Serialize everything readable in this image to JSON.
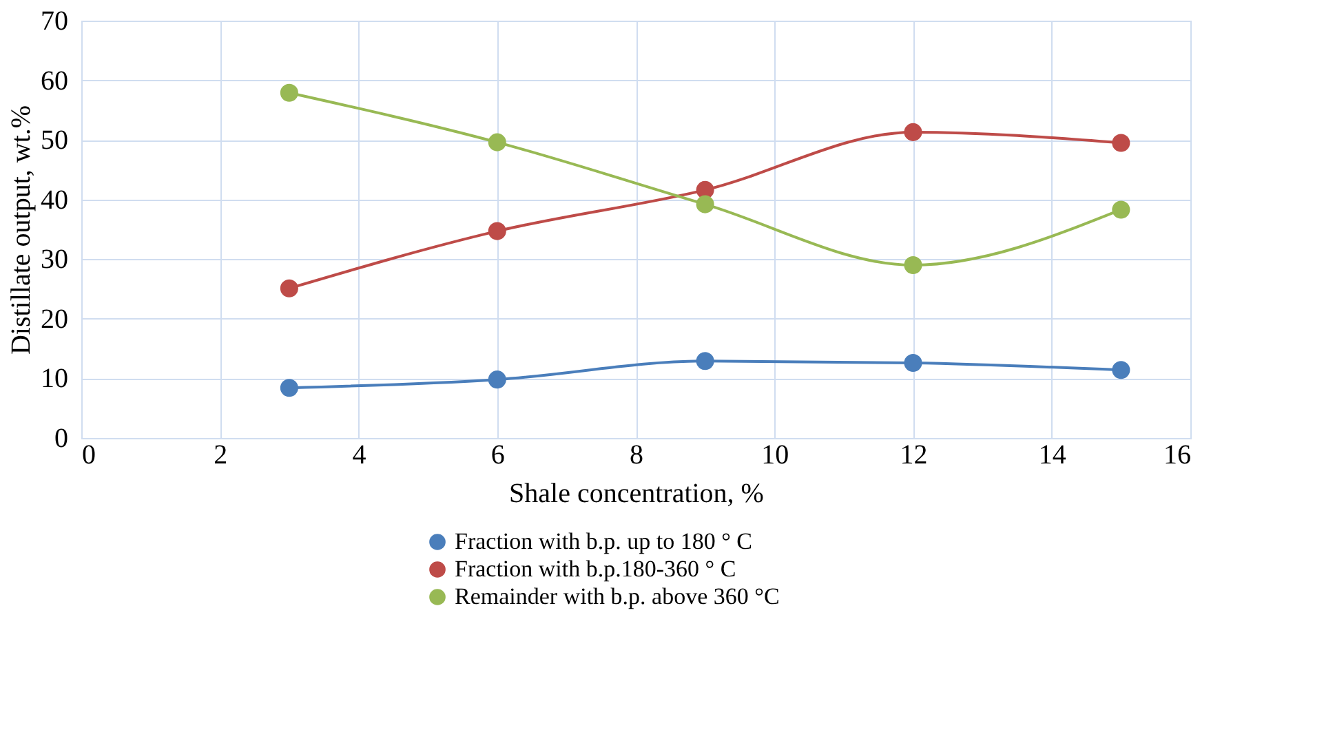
{
  "chart_data": {
    "type": "line",
    "xlabel": "Shale concentration, %",
    "ylabel": "Distillate output, wt.%",
    "x": [
      3,
      6,
      9,
      12,
      15
    ],
    "series": [
      {
        "name": "Fraction with b.p. up to 180 ° C",
        "color": "#4a7ebb",
        "values": [
          8.4,
          9.8,
          12.9,
          12.6,
          11.4
        ]
      },
      {
        "name": "Fraction with b.p.180-360 ° C",
        "color": "#be4b48",
        "values": [
          25.1,
          34.7,
          41.6,
          51.3,
          49.5
        ]
      },
      {
        "name": "Remainder with b.p. above 360 °C",
        "color": "#98b954",
        "values": [
          57.9,
          49.6,
          39.2,
          29.0,
          38.3
        ]
      }
    ],
    "xlim": [
      0,
      16
    ],
    "xticks": [
      0,
      2,
      4,
      6,
      8,
      10,
      12,
      14,
      16
    ],
    "ylim": [
      0,
      70
    ],
    "yticks": [
      0,
      10,
      20,
      30,
      40,
      50,
      60,
      70
    ],
    "grid": true,
    "legend": "bottom",
    "marker": "circle",
    "line_style": "solid"
  }
}
